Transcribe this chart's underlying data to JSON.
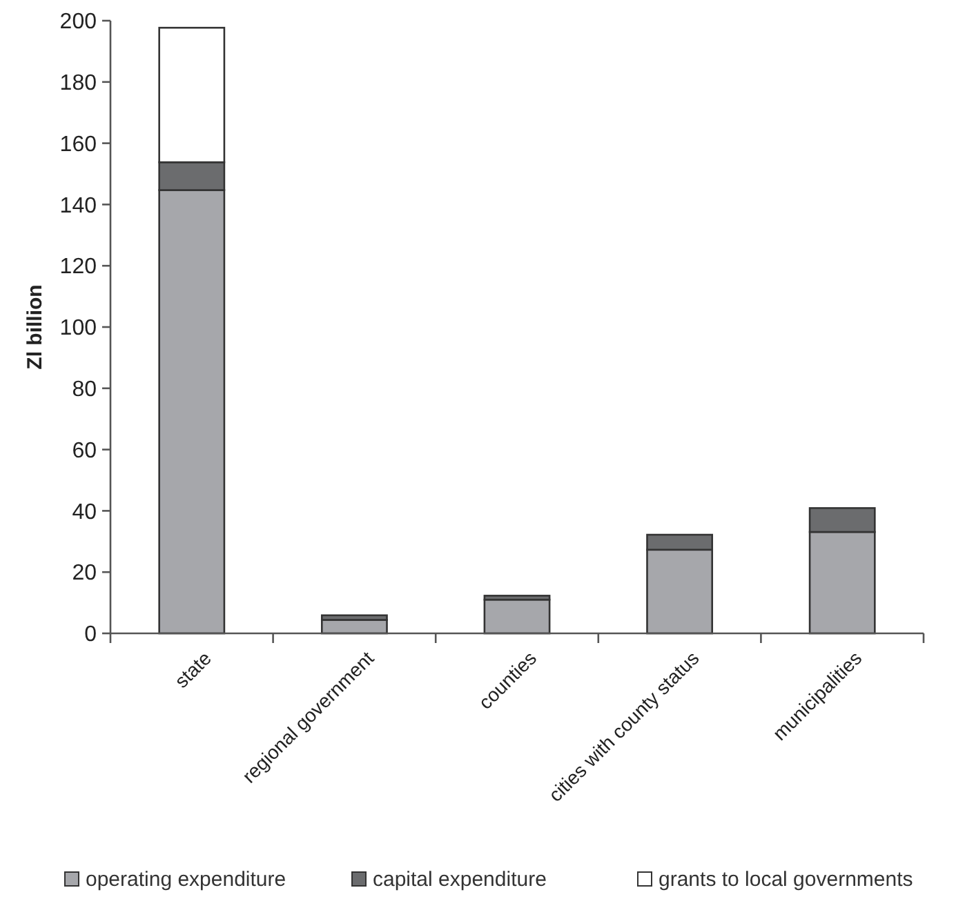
{
  "chart_data": {
    "type": "bar",
    "stacked": true,
    "ylabel": "Zl billion",
    "categories": [
      "state",
      "regional government",
      "counties",
      "cities with county status",
      "municipalities"
    ],
    "series": [
      {
        "name": "operating expenditure",
        "color": "#a6a7ab",
        "values": [
          144.7,
          4.4,
          11,
          27.3,
          33.1
        ]
      },
      {
        "name": "capital expenditure",
        "color": "#6b6c6e",
        "values": [
          9.1,
          1.5,
          1.3,
          4.9,
          7.8
        ]
      },
      {
        "name": "grants to local governments",
        "color": "#ffffff",
        "values": [
          43.9,
          0,
          0,
          0,
          0
        ]
      }
    ],
    "ylim": [
      0,
      200
    ],
    "yticks": [
      0,
      20,
      40,
      60,
      80,
      100,
      120,
      140,
      160,
      180,
      200
    ],
    "grid": false,
    "legend": "bottom"
  }
}
